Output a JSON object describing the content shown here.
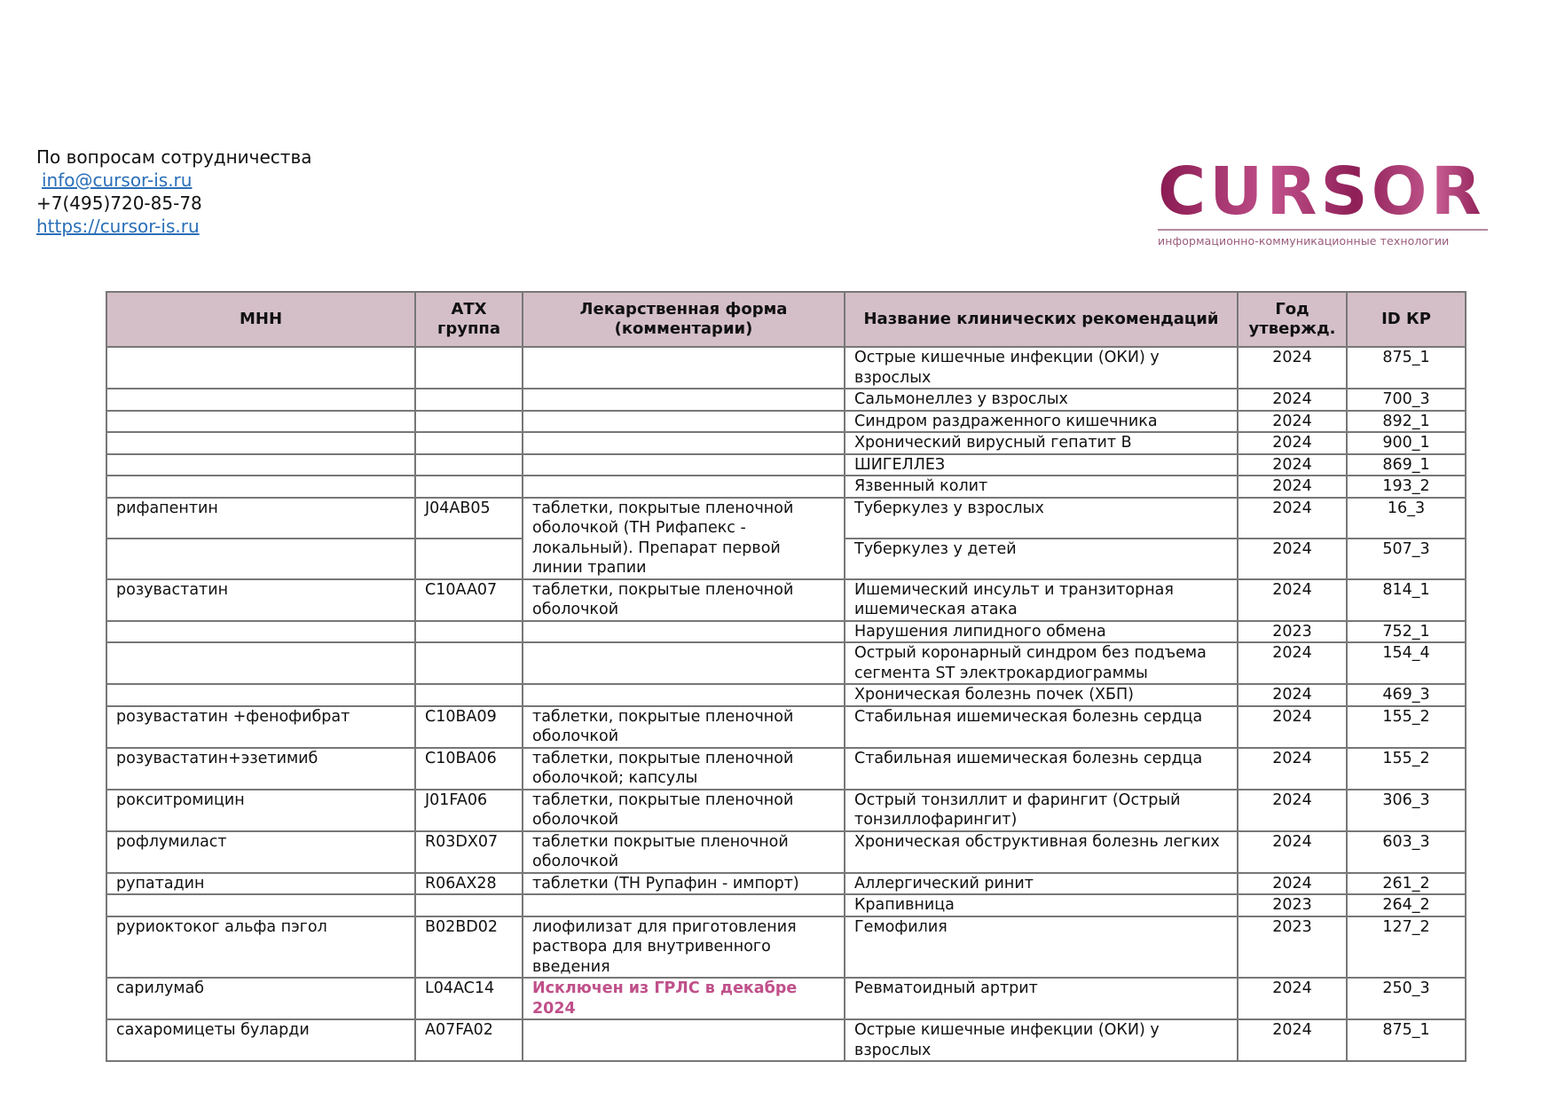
{
  "contact": {
    "heading": "По вопросам сотрудничества",
    "email": "info@cursor-is.ru",
    "phone": "+7(495)720-85-78",
    "website": "https://cursor-is.ru"
  },
  "logo": {
    "wordmark": "CURSOR",
    "tagline": "информационно-коммуникационные технологии"
  },
  "colors": {
    "header_bg": "#d4bfc8",
    "accent": "#c0508a",
    "link": "#2a6fb8"
  },
  "table": {
    "headers": [
      "МНН",
      "АТХ группа",
      "Лекарственная форма (комментарии)",
      "Название клинических рекомендаций",
      "Год утвержд.",
      "ID КР"
    ],
    "rows": [
      {
        "mnn": "",
        "atc": "",
        "form": "",
        "guideline": "Острые кишечные инфекции (ОКИ) у взрослых",
        "year": "2024",
        "id": "875_1"
      },
      {
        "mnn": "",
        "atc": "",
        "form": "",
        "guideline": "Сальмонеллез у взрослых",
        "year": "2024",
        "id": "700_3"
      },
      {
        "mnn": "",
        "atc": "",
        "form": "",
        "guideline": "Синдром раздраженного кишечника",
        "year": "2024",
        "id": "892_1"
      },
      {
        "mnn": "",
        "atc": "",
        "form": "",
        "guideline": "Хронический вирусный гепатит В",
        "year": "2024",
        "id": "900_1"
      },
      {
        "mnn": "",
        "atc": "",
        "form": "",
        "guideline": "ШИГЕЛЛЕЗ",
        "year": "2024",
        "id": "869_1"
      },
      {
        "mnn": "",
        "atc": "",
        "form": "",
        "guideline": "Язвенный колит",
        "year": "2024",
        "id": "193_2"
      },
      {
        "mnn": "рифапентин",
        "atc": "J04AB05",
        "form": "таблетки, покрытые пленочной оболочкой (ТН Рифапекс - локальный). Препарат первой линии трапии",
        "form_rowspan": 2,
        "guideline": "Туберкулез у взрослых",
        "year": "2024",
        "id": "16_3"
      },
      {
        "mnn": "",
        "atc": "",
        "guideline": "Туберкулез у детей",
        "year": "2024",
        "id": "507_3"
      },
      {
        "mnn": "розувастатин",
        "atc": "C10AA07",
        "form": "таблетки, покрытые пленочной оболочкой",
        "guideline": "Ишемический инсульт и транзиторная ишемическая атака",
        "year": "2024",
        "id": "814_1"
      },
      {
        "mnn": "",
        "atc": "",
        "form": "",
        "guideline": "Нарушения липидного обмена",
        "year": "2023",
        "id": "752_1"
      },
      {
        "mnn": "",
        "atc": "",
        "form": "",
        "guideline": "Острый коронарный синдром без подъема сегмента ST электрокардиограммы",
        "year": "2024",
        "id": "154_4"
      },
      {
        "mnn": "",
        "atc": "",
        "form": "",
        "guideline": "Хроническая болезнь почек (ХБП)",
        "year": "2024",
        "id": "469_3"
      },
      {
        "mnn": "розувастатин +фенофибрат",
        "atc": "C10BA09",
        "form": "таблетки, покрытые пленочной оболочкой",
        "guideline": "Стабильная ишемическая болезнь сердца",
        "year": "2024",
        "id": "155_2"
      },
      {
        "mnn": "розувастатин+эзетимиб",
        "atc": "C10BA06",
        "form": "таблетки, покрытые пленочной оболочкой; капсулы",
        "guideline": "Стабильная ишемическая болезнь сердца",
        "year": "2024",
        "id": "155_2"
      },
      {
        "mnn": "рокситромицин",
        "atc": "J01FA06",
        "form": "таблетки, покрытые пленочной оболочкой",
        "guideline": "Острый тонзиллит и фарингит (Острый тонзиллофарингит)",
        "year": "2024",
        "id": "306_3"
      },
      {
        "mnn": "рофлумиласт",
        "atc": "R03DX07",
        "form": "таблетки покрытые пленочной оболочкой",
        "guideline": "Хроническая обструктивная болезнь легких",
        "year": "2024",
        "id": "603_3"
      },
      {
        "mnn": "рупатадин",
        "atc": "R06AX28",
        "form": "таблетки (ТН Рупафин - импорт)",
        "guideline": "Аллергический ринит",
        "year": "2024",
        "id": "261_2"
      },
      {
        "mnn": "",
        "atc": "",
        "form": "",
        "guideline": "Крапивница",
        "year": "2023",
        "id": "264_2"
      },
      {
        "mnn": "руриоктоког альфа пэгол",
        "atc": "B02BD02",
        "form": "лиофилизат для приготовления раствора для внутривенного введения",
        "guideline": "Гемофилия",
        "year": "2023",
        "id": "127_2"
      },
      {
        "mnn": "сарилумаб",
        "atc": "L04AC14",
        "form": "Исключен из ГРЛС в декабре 2024",
        "form_highlight": true,
        "guideline": "Ревматоидный артрит",
        "year": "2024",
        "id": "250_3"
      },
      {
        "mnn": "сахаромицеты буларди",
        "atc": "A07FA02",
        "form": "",
        "guideline": "Острые кишечные инфекции (ОКИ) у взрослых",
        "year": "2024",
        "id": "875_1"
      }
    ]
  }
}
